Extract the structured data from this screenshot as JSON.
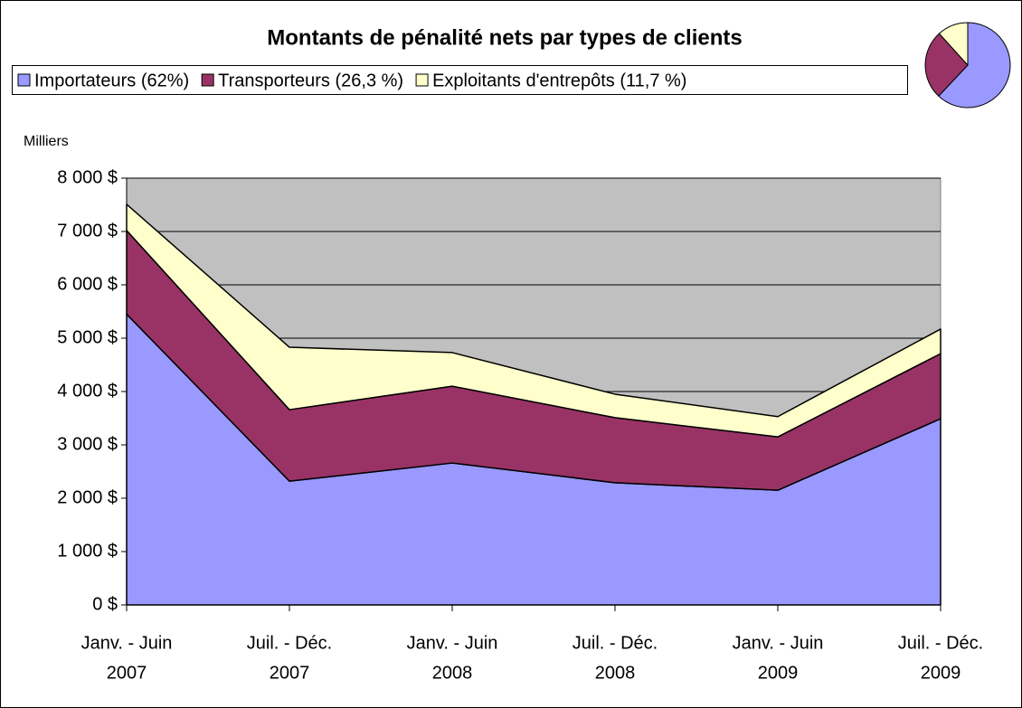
{
  "chart_data": [
    {
      "type": "stacked_area",
      "title": "Montants de pénalité nets par types de clients",
      "ylabel": "Milliers",
      "categories": [
        [
          "Janv. - Juin",
          "2007"
        ],
        [
          "Juil. - Déc.",
          "2007"
        ],
        [
          "Janv. - Juin",
          "2008"
        ],
        [
          "Juil. - Déc.",
          "2008"
        ],
        [
          "Janv. - Juin",
          "2009"
        ],
        [
          "Juil. - Déc.",
          "2009"
        ]
      ],
      "series": [
        {
          "name": "Importateurs (62%)",
          "color": "#9999ff",
          "values": [
            5450,
            2320,
            2660,
            2290,
            2150,
            3490
          ]
        },
        {
          "name": "Transporteurs (26,3 %)",
          "color": "#993366",
          "values": [
            1570,
            1340,
            1440,
            1220,
            1000,
            1220
          ]
        },
        {
          "name": "Exploitants d'entrepôts (11,7 %)",
          "color": "#ffffcc",
          "values": [
            490,
            1170,
            630,
            440,
            380,
            460
          ]
        }
      ],
      "ylim": [
        0,
        8000
      ],
      "yticks": [
        {
          "value": 0,
          "label": "0 $"
        },
        {
          "value": 1000,
          "label": "1 000 $"
        },
        {
          "value": 2000,
          "label": "2 000 $"
        },
        {
          "value": 3000,
          "label": "3 000 $"
        },
        {
          "value": 4000,
          "label": "4 000 $"
        },
        {
          "value": 5000,
          "label": "5 000 $"
        },
        {
          "value": 6000,
          "label": "6 000 $"
        },
        {
          "value": 7000,
          "label": "7 000 $"
        },
        {
          "value": 8000,
          "label": "8 000 $"
        }
      ],
      "grid": true,
      "plot_background": "#c0c0c0",
      "legend": "top"
    },
    {
      "type": "pie",
      "values": [
        62,
        26.3,
        11.7
      ],
      "colors": [
        "#9999ff",
        "#993366",
        "#ffffcc"
      ]
    }
  ]
}
